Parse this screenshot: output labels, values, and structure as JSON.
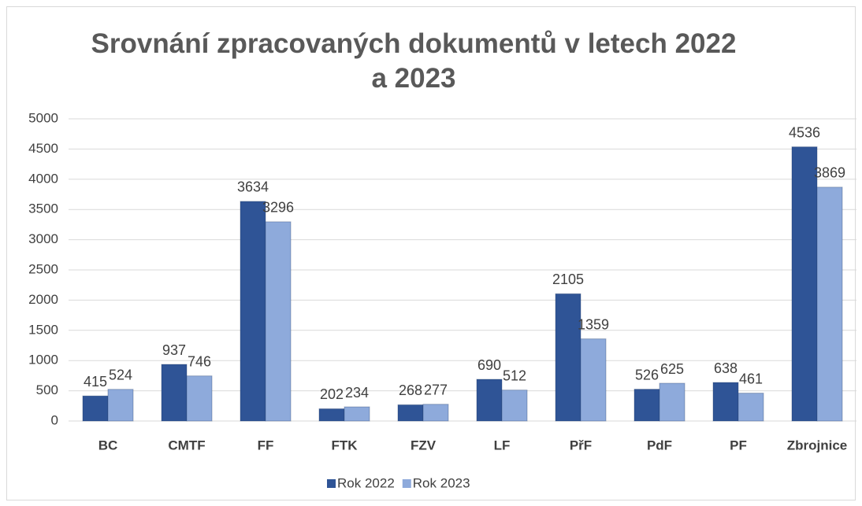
{
  "chart_data": {
    "type": "bar",
    "title": "Srovnání zpracovaných dokumentů v letech 2022 a 2023",
    "categories": [
      "BC",
      "CMTF",
      "FF",
      "FTK",
      "FZV",
      "LF",
      "PřF",
      "PdF",
      "PF",
      "Zbrojnice"
    ],
    "series": [
      {
        "name": "Rok 2022",
        "color": "#2f5496",
        "values": [
          415,
          937,
          3634,
          202,
          268,
          690,
          2105,
          526,
          638,
          4536
        ]
      },
      {
        "name": "Rok 2023",
        "color": "#8eaadb",
        "values": [
          524,
          746,
          3296,
          234,
          277,
          512,
          1359,
          625,
          461,
          3869
        ]
      }
    ],
    "ylim": [
      0,
      5000
    ],
    "yticks": [
      0,
      500,
      1000,
      1500,
      2000,
      2500,
      3000,
      3500,
      4000,
      4500,
      5000
    ],
    "grid": true,
    "legend": "bottom"
  }
}
